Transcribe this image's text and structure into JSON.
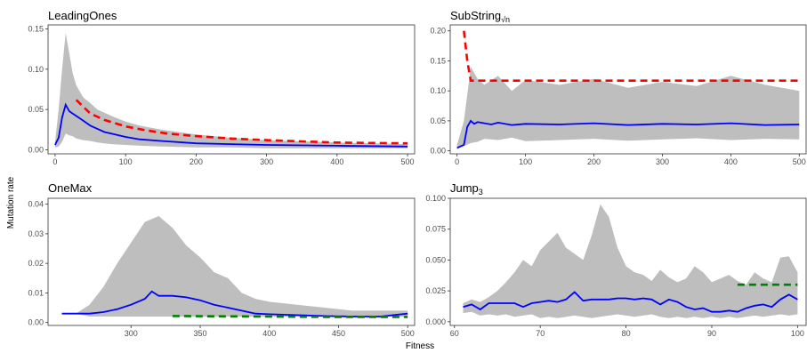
{
  "figure": {
    "xlabel": "Fitness",
    "ylabel": "Mutation rate"
  },
  "chart_data": [
    {
      "type": "area",
      "title": "LeadingOnes",
      "xlim": [
        -10,
        510
      ],
      "ylim": [
        -0.005,
        0.155
      ],
      "xticks": [
        0,
        100,
        200,
        300,
        400,
        500
      ],
      "yticks": [
        0,
        0.05,
        0.1,
        0.15
      ],
      "ytick_labels": [
        "0.00",
        "0.05",
        "0.10",
        "0.15"
      ],
      "colors": {
        "band": "#bebebe",
        "mean": "#0000ff",
        "reference": "#ff0000"
      },
      "series": [
        {
          "kind": "band",
          "x": [
            0,
            5,
            10,
            15,
            20,
            25,
            30,
            40,
            50,
            60,
            70,
            80,
            100,
            120,
            150,
            200,
            250,
            300,
            400,
            500
          ],
          "lower": [
            0.003,
            0.004,
            0.01,
            0.02,
            0.018,
            0.017,
            0.014,
            0.012,
            0.011,
            0.009,
            0.008,
            0.007,
            0.006,
            0.005,
            0.004,
            0.003,
            0.003,
            0.002,
            0.002,
            0.002
          ],
          "upper": [
            0.01,
            0.05,
            0.1,
            0.145,
            0.12,
            0.095,
            0.08,
            0.065,
            0.058,
            0.05,
            0.046,
            0.042,
            0.035,
            0.03,
            0.025,
            0.019,
            0.015,
            0.012,
            0.009,
            0.007
          ]
        },
        {
          "kind": "line",
          "x": [
            0,
            5,
            10,
            15,
            20,
            25,
            30,
            40,
            50,
            60,
            70,
            80,
            100,
            120,
            150,
            200,
            250,
            300,
            400,
            500
          ],
          "y": [
            0.006,
            0.015,
            0.04,
            0.056,
            0.048,
            0.045,
            0.042,
            0.036,
            0.03,
            0.026,
            0.022,
            0.02,
            0.016,
            0.013,
            0.011,
            0.008,
            0.007,
            0.006,
            0.005,
            0.004
          ]
        },
        {
          "kind": "dashed",
          "x": [
            30,
            50,
            70,
            100,
            130,
            160,
            200,
            250,
            300,
            350,
            400,
            450,
            500
          ],
          "y": [
            0.062,
            0.045,
            0.037,
            0.029,
            0.024,
            0.02,
            0.017,
            0.014,
            0.012,
            0.0105,
            0.009,
            0.0085,
            0.008
          ]
        }
      ]
    },
    {
      "type": "area",
      "title": "SubString",
      "title_subscript": "√n",
      "xlim": [
        -10,
        510
      ],
      "ylim": [
        -0.005,
        0.21
      ],
      "xticks": [
        0,
        100,
        200,
        300,
        400,
        500
      ],
      "yticks": [
        0,
        0.05,
        0.1,
        0.15,
        0.2
      ],
      "ytick_labels": [
        "0.00",
        "0.05",
        "0.10",
        "0.15",
        "0.20"
      ],
      "colors": {
        "band": "#bebebe",
        "mean": "#0000ff",
        "reference": "#ff0000"
      },
      "series": [
        {
          "kind": "band",
          "x": [
            0,
            10,
            20,
            30,
            40,
            60,
            80,
            100,
            150,
            200,
            250,
            300,
            350,
            400,
            450,
            500
          ],
          "lower": [
            0.003,
            0.008,
            0.013,
            0.015,
            0.02,
            0.018,
            0.022,
            0.016,
            0.018,
            0.02,
            0.017,
            0.019,
            0.021,
            0.018,
            0.02,
            0.019
          ],
          "upper": [
            0.01,
            0.05,
            0.14,
            0.12,
            0.11,
            0.125,
            0.1,
            0.118,
            0.11,
            0.12,
            0.105,
            0.115,
            0.108,
            0.125,
            0.11,
            0.1
          ]
        },
        {
          "kind": "line",
          "x": [
            0,
            10,
            15,
            20,
            25,
            30,
            40,
            50,
            60,
            80,
            100,
            150,
            200,
            250,
            300,
            350,
            400,
            450,
            500
          ],
          "y": [
            0.005,
            0.01,
            0.04,
            0.05,
            0.045,
            0.048,
            0.046,
            0.044,
            0.047,
            0.043,
            0.045,
            0.044,
            0.046,
            0.043,
            0.045,
            0.044,
            0.046,
            0.043,
            0.044
          ]
        },
        {
          "kind": "dashed",
          "x": [
            10,
            15,
            20,
            30,
            100,
            200,
            300,
            400,
            500
          ],
          "y": [
            0.2,
            0.15,
            0.117,
            0.117,
            0.117,
            0.117,
            0.117,
            0.117,
            0.117
          ]
        }
      ]
    },
    {
      "type": "area",
      "title": "OneMax",
      "xlim": [
        240,
        505
      ],
      "ylim": [
        -0.001,
        0.042
      ],
      "xticks": [
        300,
        350,
        400,
        450,
        500
      ],
      "yticks": [
        0,
        0.01,
        0.02,
        0.03,
        0.04
      ],
      "ytick_labels": [
        "0.00",
        "0.01",
        "0.02",
        "0.03",
        "0.04"
      ],
      "colors": {
        "band": "#bebebe",
        "mean": "#0000ff",
        "reference": "#008000"
      },
      "series": [
        {
          "kind": "band",
          "x": [
            250,
            260,
            270,
            280,
            290,
            300,
            310,
            320,
            330,
            340,
            350,
            360,
            370,
            380,
            390,
            400,
            420,
            440,
            460,
            480,
            500
          ],
          "lower": [
            0.003,
            0.003,
            0.002,
            0.002,
            0.002,
            0.002,
            0.002,
            0.002,
            0.002,
            0.002,
            0.002,
            0.002,
            0.002,
            0.002,
            0.002,
            0.002,
            0.002,
            0.002,
            0.002,
            0.002,
            0.002
          ],
          "upper": [
            0.003,
            0.003,
            0.006,
            0.012,
            0.02,
            0.027,
            0.034,
            0.036,
            0.032,
            0.026,
            0.022,
            0.017,
            0.015,
            0.01,
            0.008,
            0.007,
            0.006,
            0.005,
            0.004,
            0.004,
            0.004
          ]
        },
        {
          "kind": "line",
          "x": [
            250,
            260,
            270,
            280,
            290,
            300,
            310,
            315,
            320,
            330,
            340,
            350,
            360,
            370,
            380,
            390,
            400,
            420,
            440,
            460,
            480,
            500
          ],
          "y": [
            0.003,
            0.003,
            0.003,
            0.0035,
            0.0045,
            0.006,
            0.008,
            0.0105,
            0.009,
            0.009,
            0.0085,
            0.0075,
            0.006,
            0.005,
            0.004,
            0.003,
            0.0028,
            0.0025,
            0.0022,
            0.002,
            0.002,
            0.003
          ]
        },
        {
          "kind": "dashed",
          "x": [
            330,
            360,
            400,
            440,
            470,
            500
          ],
          "y": [
            0.0022,
            0.0021,
            0.002,
            0.0019,
            0.0019,
            0.0019
          ]
        }
      ]
    },
    {
      "type": "area",
      "title": "Jump",
      "title_subscript": "3",
      "xlim": [
        59.5,
        101
      ],
      "ylim": [
        -0.003,
        0.1
      ],
      "xticks": [
        60,
        70,
        80,
        90,
        100
      ],
      "yticks": [
        0,
        0.025,
        0.05,
        0.075,
        0.1
      ],
      "ytick_labels": [
        "0.000",
        "0.025",
        "0.050",
        "0.075",
        "0.100"
      ],
      "colors": {
        "band": "#bebebe",
        "mean": "#0000ff",
        "reference": "#008000"
      },
      "series": [
        {
          "kind": "band",
          "x": [
            61,
            62,
            63,
            64,
            65,
            66,
            67,
            68,
            69,
            70,
            71,
            72,
            73,
            74,
            75,
            76,
            77,
            78,
            79,
            80,
            81,
            82,
            83,
            84,
            85,
            86,
            87,
            88,
            89,
            90,
            91,
            92,
            93,
            94,
            95,
            96,
            97,
            98,
            99,
            100
          ],
          "lower": [
            0.007,
            0.008,
            0.005,
            0.006,
            0.005,
            0.006,
            0.004,
            0.005,
            0.006,
            0.003,
            0.004,
            0.003,
            0.004,
            0.005,
            0.004,
            0.003,
            0.004,
            0.005,
            0.006,
            0.005,
            0.004,
            0.005,
            0.006,
            0.004,
            0.003,
            0.004,
            0.003,
            0.004,
            0.003,
            0.004,
            0.003,
            0.004,
            0.003,
            0.004,
            0.005,
            0.004,
            0.005,
            0.006,
            0.005,
            0.006
          ],
          "upper": [
            0.015,
            0.018,
            0.016,
            0.02,
            0.025,
            0.032,
            0.04,
            0.05,
            0.045,
            0.058,
            0.065,
            0.072,
            0.06,
            0.055,
            0.05,
            0.07,
            0.095,
            0.085,
            0.06,
            0.045,
            0.04,
            0.038,
            0.033,
            0.042,
            0.036,
            0.032,
            0.035,
            0.045,
            0.04,
            0.032,
            0.035,
            0.038,
            0.033,
            0.03,
            0.04,
            0.035,
            0.032,
            0.052,
            0.053,
            0.04
          ]
        },
        {
          "kind": "line",
          "x": [
            61,
            62,
            63,
            64,
            65,
            66,
            67,
            68,
            69,
            70,
            71,
            72,
            73,
            74,
            75,
            76,
            77,
            78,
            79,
            80,
            81,
            82,
            83,
            84,
            85,
            86,
            87,
            88,
            89,
            90,
            91,
            92,
            93,
            94,
            95,
            96,
            97,
            98,
            99,
            100
          ],
          "y": [
            0.012,
            0.014,
            0.01,
            0.015,
            0.015,
            0.015,
            0.015,
            0.012,
            0.015,
            0.016,
            0.017,
            0.016,
            0.018,
            0.024,
            0.017,
            0.018,
            0.018,
            0.018,
            0.019,
            0.019,
            0.018,
            0.019,
            0.018,
            0.014,
            0.018,
            0.016,
            0.012,
            0.01,
            0.011,
            0.008,
            0.008,
            0.009,
            0.008,
            0.011,
            0.013,
            0.014,
            0.012,
            0.018,
            0.022,
            0.018
          ]
        },
        {
          "kind": "dashed",
          "x": [
            93,
            100
          ],
          "y": [
            0.03,
            0.03
          ]
        }
      ]
    }
  ]
}
